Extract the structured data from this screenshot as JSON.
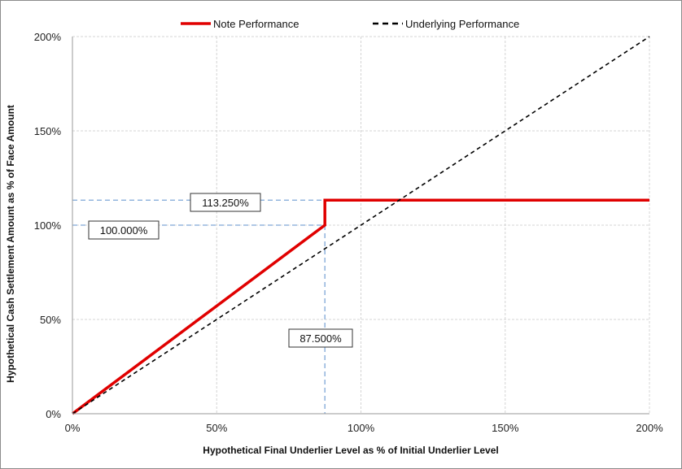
{
  "chart_data": {
    "type": "line",
    "xlabel": "Hypothetical Final Underlier Level as % of Initial Underlier Level",
    "ylabel": "Hypothetical Cash Settlement Amount as % of Face Amount",
    "xlim": [
      0,
      200
    ],
    "ylim": [
      0,
      200
    ],
    "x_ticks": [
      "0%",
      "50%",
      "100%",
      "150%",
      "200%"
    ],
    "y_ticks": [
      "0%",
      "50%",
      "100%",
      "150%",
      "200%"
    ],
    "x_tick_values": [
      0,
      50,
      100,
      150,
      200
    ],
    "y_tick_values": [
      0,
      50,
      100,
      150,
      200
    ],
    "grid": true,
    "legend_position": "top-center",
    "series": [
      {
        "name": "Note Performance",
        "color": "#e00000",
        "style": "solid",
        "x": [
          0,
          87.5,
          87.5,
          200
        ],
        "y": [
          0,
          100,
          113.25,
          113.25
        ]
      },
      {
        "name": "Underlying Performance",
        "color": "#000000",
        "style": "dashed",
        "x": [
          0,
          200
        ],
        "y": [
          0,
          200
        ]
      }
    ],
    "annotations": [
      {
        "text": "113.250%",
        "x": 87.5,
        "y": 113.25,
        "kind": "horizontal-guide"
      },
      {
        "text": "100.000%",
        "x": 87.5,
        "y": 100,
        "kind": "horizontal-guide"
      },
      {
        "text": "87.500%",
        "x": 87.5,
        "y": 100,
        "kind": "vertical-guide"
      }
    ],
    "guide_color": "#7fa8d8"
  }
}
